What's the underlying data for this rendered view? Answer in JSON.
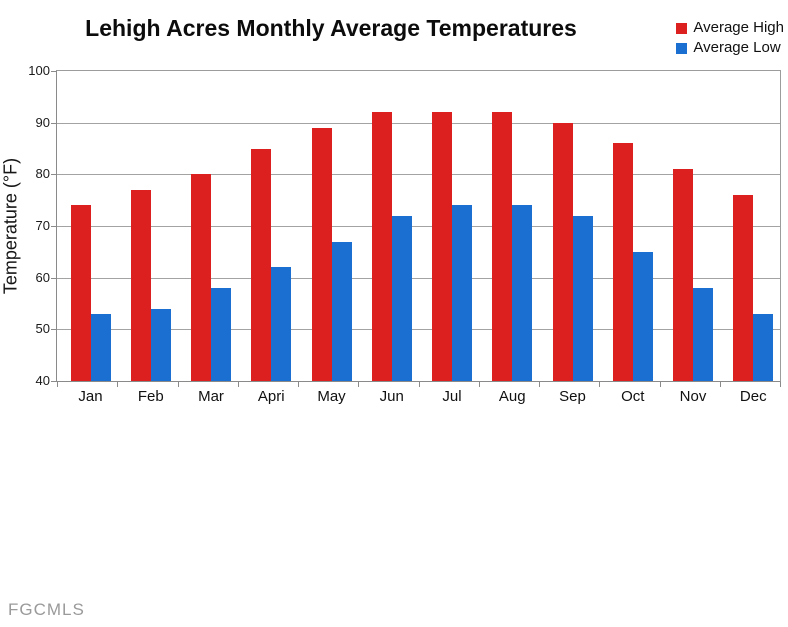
{
  "watermark": "FGCMLS",
  "chart_data": {
    "type": "bar",
    "title": "Lehigh Acres Monthly Average Temperatures",
    "xlabel": "",
    "ylabel": "Temperature (°F)",
    "ylim": [
      40,
      100
    ],
    "yticks": [
      40,
      50,
      60,
      70,
      80,
      90,
      100
    ],
    "grid": true,
    "legend_position": "top-right",
    "categories": [
      "Jan",
      "Feb",
      "Mar",
      "Apri",
      "May",
      "Jun",
      "Jul",
      "Aug",
      "Sep",
      "Oct",
      "Nov",
      "Dec"
    ],
    "series": [
      {
        "name": "Average High",
        "color": "#dc1f1f",
        "values": [
          74,
          77,
          80,
          85,
          89,
          92,
          92,
          92,
          90,
          86,
          81,
          76
        ]
      },
      {
        "name": "Average Low",
        "color": "#1b6fd0",
        "values": [
          53,
          54,
          58,
          62,
          67,
          72,
          74,
          74,
          72,
          65,
          58,
          53
        ]
      }
    ]
  }
}
